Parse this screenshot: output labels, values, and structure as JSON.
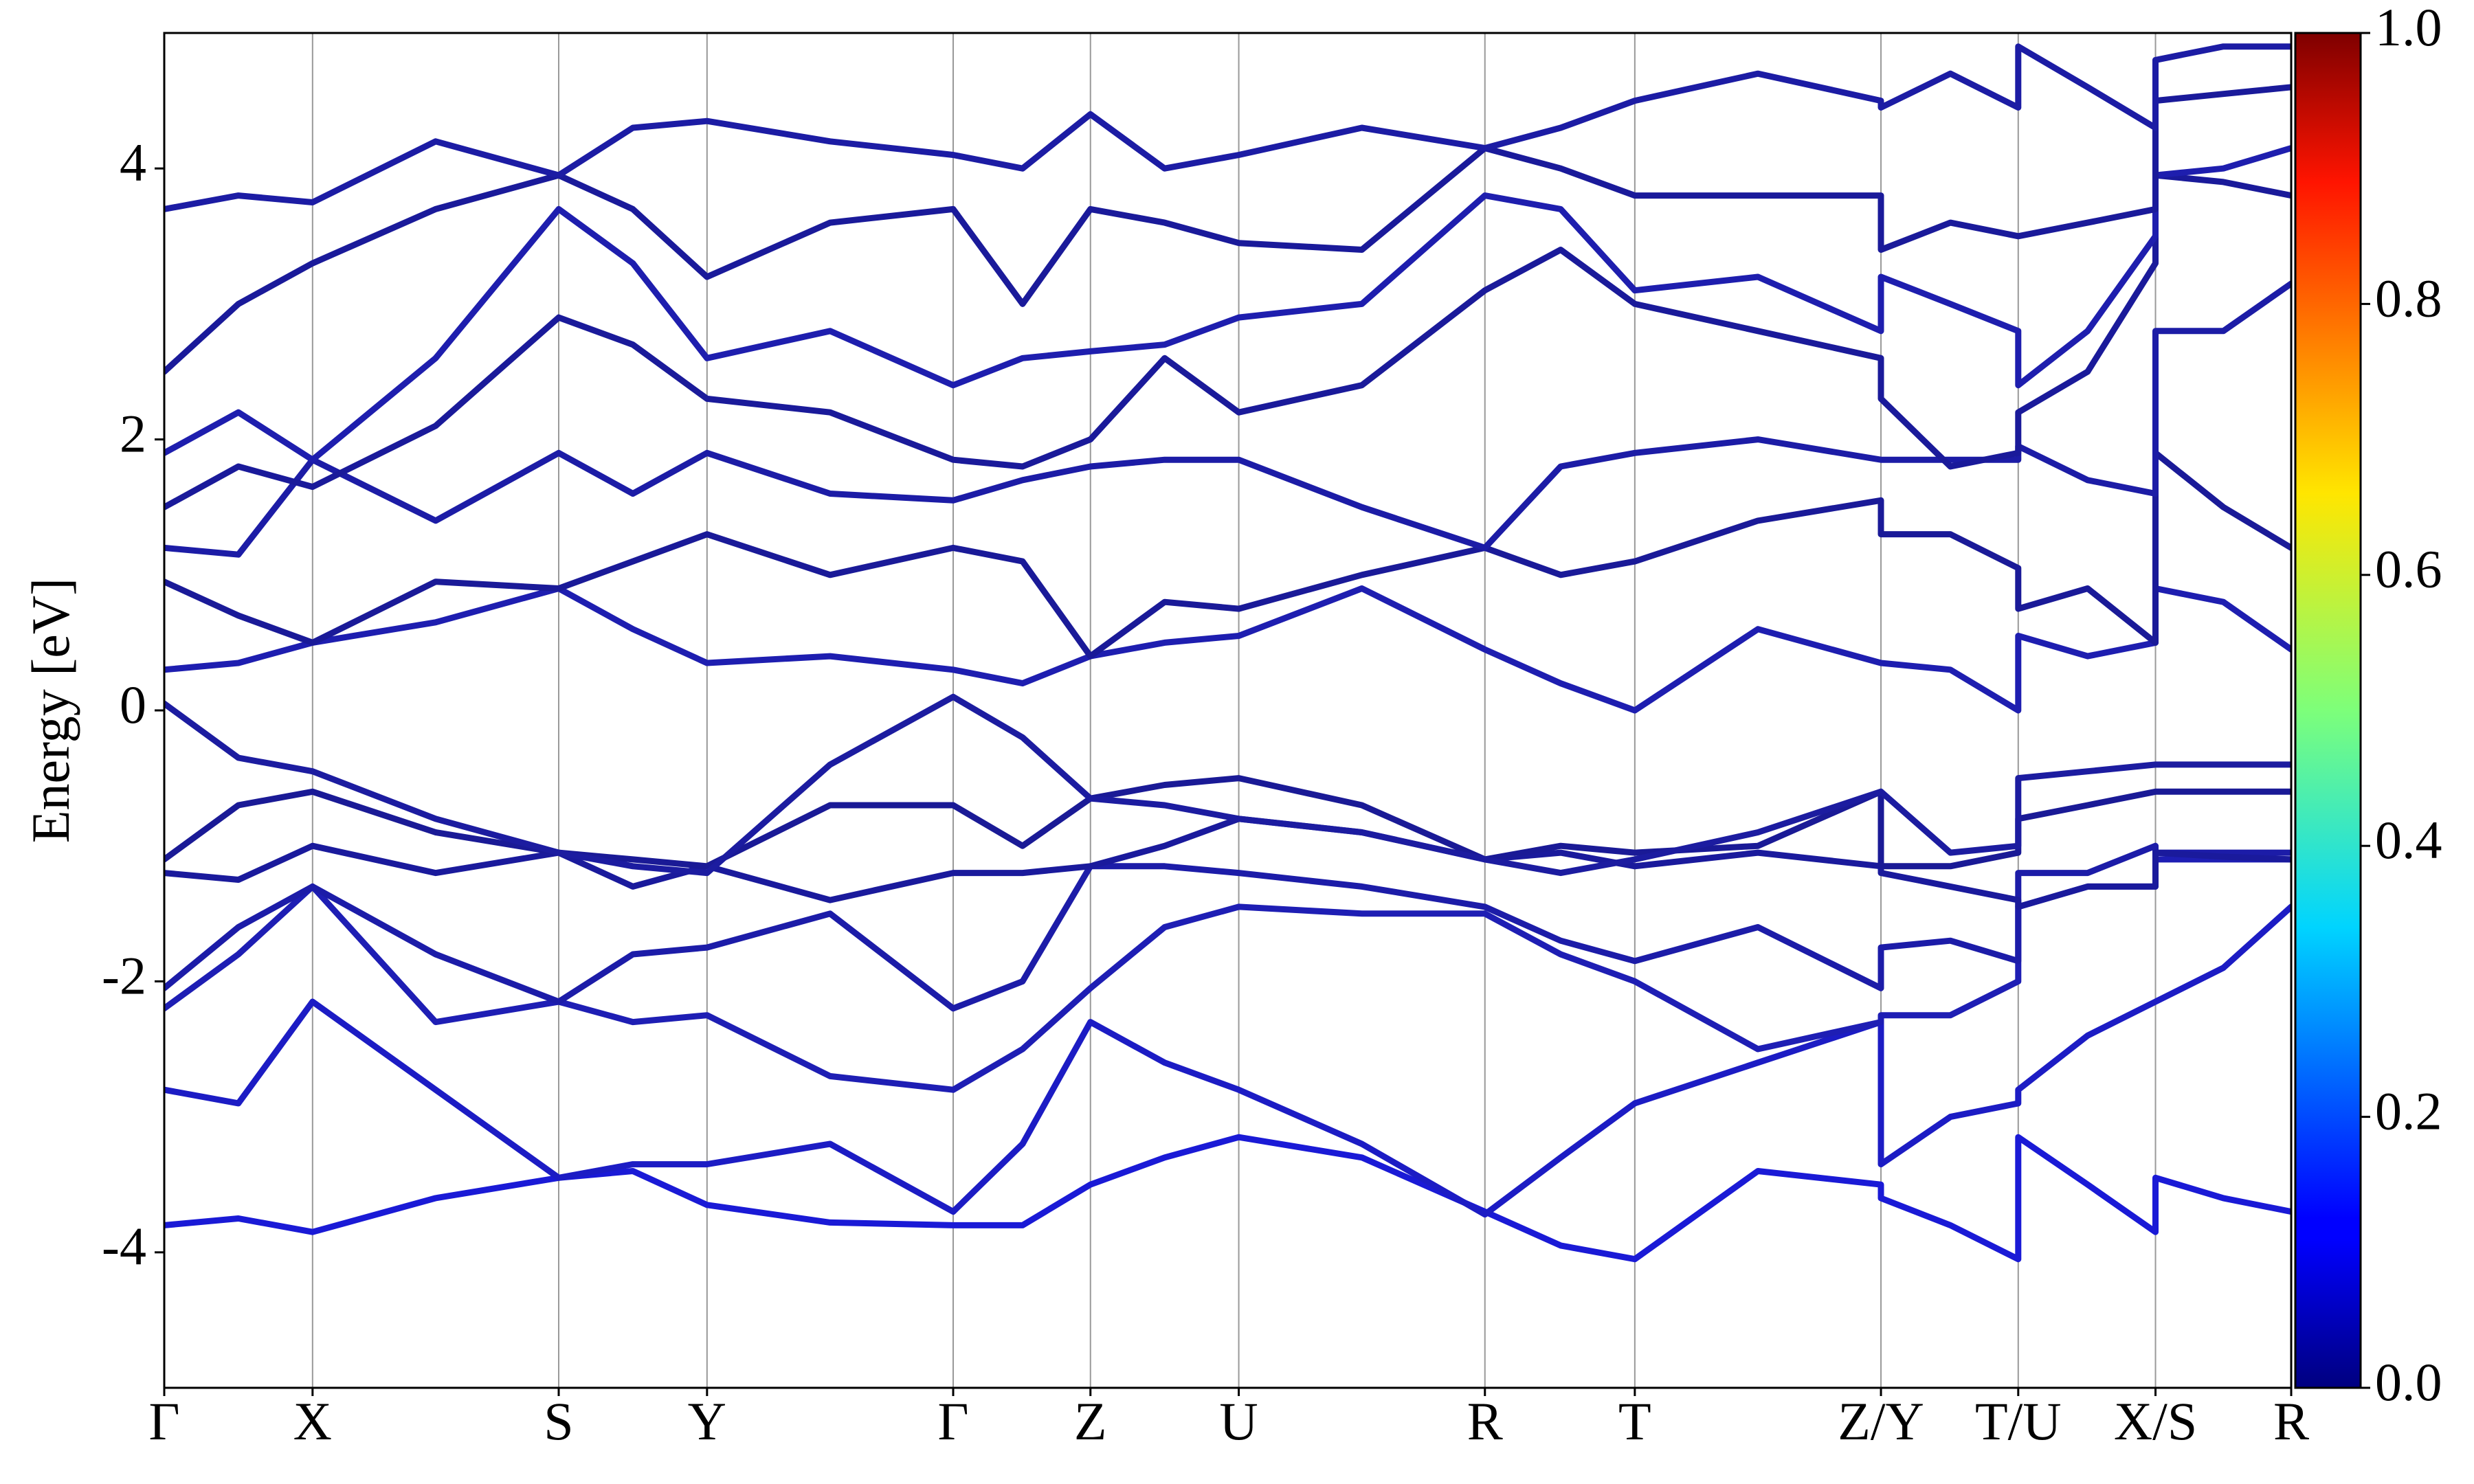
{
  "chart_data": {
    "type": "line",
    "ylabel": "Energy [eV]",
    "x": [
      0,
      0.47,
      0.94,
      1.72,
      2.5,
      2.97,
      3.44,
      4.22,
      5.0,
      5.44,
      5.87,
      6.34,
      6.81,
      7.59,
      8.37,
      8.85,
      9.32,
      10.1,
      10.88,
      10.88,
      11.32,
      11.75,
      11.75,
      12.19,
      12.62,
      12.62,
      13.05,
      13.48
    ],
    "xlim": [
      0,
      13.48
    ],
    "xticks": [
      {
        "value": 0,
        "label": "Γ"
      },
      {
        "value": 0.94,
        "label": "X"
      },
      {
        "value": 2.5,
        "label": "S"
      },
      {
        "value": 3.44,
        "label": "Y"
      },
      {
        "value": 5.0,
        "label": "Γ"
      },
      {
        "value": 5.87,
        "label": "Z"
      },
      {
        "value": 6.81,
        "label": "U"
      },
      {
        "value": 8.37,
        "label": "R"
      },
      {
        "value": 9.32,
        "label": "T"
      },
      {
        "value": 10.88,
        "label": "Z/Y"
      },
      {
        "value": 11.75,
        "label": "T/U"
      },
      {
        "value": 12.62,
        "label": "X/S"
      },
      {
        "value": 13.48,
        "label": "R"
      }
    ],
    "ylim": [
      -5,
      5
    ],
    "yticks": [
      -4,
      -2,
      0,
      2,
      4
    ],
    "grid": true,
    "colorbar": {
      "lim": [
        0,
        1
      ],
      "ticks": [
        {
          "value": 0,
          "label": "0.0"
        },
        {
          "value": 0.2,
          "label": "0.2"
        },
        {
          "value": 0.4,
          "label": "0.4"
        },
        {
          "value": 0.6,
          "label": "0.6"
        },
        {
          "value": 0.8,
          "label": "0.8"
        },
        {
          "value": 1,
          "label": "1.0"
        }
      ]
    },
    "series": [
      {
        "color": "#1a1ad6",
        "values": [
          -3.8,
          -3.75,
          -3.85,
          -3.6,
          -3.45,
          -3.4,
          -3.65,
          -3.78,
          -3.8,
          -3.8,
          -3.5,
          -3.3,
          -3.15,
          -3.3,
          -3.7,
          -3.95,
          -4.05,
          -3.4,
          -3.5,
          -3.6,
          -3.8,
          -4.05,
          -3.15,
          -3.5,
          -3.85,
          -3.45,
          -3.6,
          -3.7
        ]
      },
      {
        "color": "#1c1cc4",
        "values": [
          -2.8,
          -2.9,
          -2.15,
          -2.8,
          -3.45,
          -3.35,
          -3.35,
          -3.2,
          -3.7,
          -3.2,
          -2.3,
          -2.6,
          -2.8,
          -3.2,
          -3.72,
          -3.3,
          -2.9,
          -2.6,
          -2.3,
          -3.35,
          -3.0,
          -2.9,
          -2.8,
          -2.4,
          -2.15,
          -2.15,
          -1.9,
          -1.45
        ]
      },
      {
        "color": "#1e1eb4",
        "values": [
          -2.2,
          -1.8,
          -1.3,
          -2.3,
          -2.15,
          -2.3,
          -2.25,
          -2.7,
          -2.8,
          -2.5,
          -2.05,
          -1.6,
          -1.45,
          -1.5,
          -1.5,
          -1.8,
          -2.0,
          -2.5,
          -2.3,
          -2.25,
          -2.25,
          -2.0,
          -1.45,
          -1.3,
          -1.3,
          -1.1,
          -1.1,
          -1.1
        ]
      },
      {
        "color": "#1c1ca8",
        "values": [
          -2.05,
          -1.6,
          -1.3,
          -1.8,
          -2.15,
          -1.8,
          -1.75,
          -1.5,
          -2.2,
          -2.0,
          -1.15,
          -1.15,
          -1.2,
          -1.3,
          -1.45,
          -1.7,
          -1.85,
          -1.6,
          -2.05,
          -1.75,
          -1.7,
          -1.85,
          -1.2,
          -1.2,
          -1.0,
          -1.05,
          -1.05,
          -1.05
        ]
      },
      {
        "color": "#1a1a9c",
        "values": [
          -1.2,
          -1.25,
          -1.0,
          -1.2,
          -1.05,
          -1.3,
          -1.15,
          -1.4,
          -1.2,
          -1.2,
          -1.15,
          -1.0,
          -0.8,
          -0.9,
          -1.1,
          -1.05,
          -1.15,
          -1.05,
          -1.15,
          -1.2,
          -1.3,
          -1.4,
          -1.45,
          -1.3,
          -1.3,
          -1.05,
          -1.08,
          -1.1
        ]
      },
      {
        "color": "#1a1a96",
        "values": [
          -1.1,
          -0.7,
          -0.6,
          -0.9,
          -1.05,
          -1.1,
          -1.15,
          -0.7,
          -0.7,
          -1.0,
          -0.65,
          -0.55,
          -0.5,
          -0.7,
          -1.1,
          -1.0,
          -1.05,
          -1.0,
          -0.6,
          -1.15,
          -1.15,
          -1.05,
          -0.8,
          -0.7,
          -0.6,
          -0.6,
          -0.6,
          -0.6
        ]
      },
      {
        "color": "#1c1ca0",
        "values": [
          0.05,
          -0.35,
          -0.45,
          -0.8,
          -1.05,
          -1.15,
          -1.2,
          -0.4,
          0.1,
          -0.2,
          -0.65,
          -0.7,
          -0.8,
          -0.9,
          -1.1,
          -1.2,
          -1.1,
          -0.9,
          -0.6,
          -0.6,
          -1.05,
          -1.0,
          -0.5,
          -0.45,
          -0.4,
          -0.4,
          -0.4,
          -0.4
        ]
      },
      {
        "color": "#1e1eb0",
        "values": [
          0.3,
          0.35,
          0.5,
          0.65,
          0.9,
          0.6,
          0.35,
          0.4,
          0.3,
          0.2,
          0.4,
          0.5,
          0.55,
          0.9,
          0.45,
          0.2,
          0.0,
          0.6,
          0.35,
          0.35,
          0.3,
          0.0,
          0.55,
          0.4,
          0.5,
          0.9,
          0.8,
          0.45
        ]
      },
      {
        "color": "#1a1a98",
        "values": [
          0.95,
          0.7,
          0.5,
          0.95,
          0.9,
          1.1,
          1.3,
          1.0,
          1.2,
          1.1,
          0.4,
          0.8,
          0.75,
          1.0,
          1.2,
          1.0,
          1.1,
          1.4,
          1.55,
          1.3,
          1.3,
          1.05,
          0.75,
          0.9,
          0.5,
          1.9,
          1.5,
          1.2
        ]
      },
      {
        "color": "#1c1ca6",
        "values": [
          1.2,
          1.15,
          1.85,
          1.4,
          1.9,
          1.6,
          1.9,
          1.6,
          1.55,
          1.7,
          1.8,
          1.85,
          1.85,
          1.5,
          1.2,
          1.8,
          1.9,
          2.0,
          1.85,
          1.85,
          1.85,
          1.85,
          1.95,
          1.7,
          1.6,
          2.8,
          2.8,
          3.15
        ]
      },
      {
        "color": "#1a1a9a",
        "values": [
          1.5,
          1.8,
          1.65,
          2.1,
          2.9,
          2.7,
          2.3,
          2.2,
          1.85,
          1.8,
          2.0,
          2.6,
          2.2,
          2.4,
          3.1,
          3.4,
          3.0,
          2.8,
          2.6,
          2.3,
          1.8,
          1.9,
          2.2,
          2.5,
          3.3,
          3.95,
          3.9,
          3.8
        ]
      },
      {
        "color": "#1e1eae",
        "values": [
          1.9,
          2.2,
          1.85,
          2.6,
          3.7,
          3.3,
          2.6,
          2.8,
          2.4,
          2.6,
          2.65,
          2.7,
          2.9,
          3.0,
          3.8,
          3.7,
          3.1,
          3.2,
          2.8,
          3.2,
          3.0,
          2.8,
          2.4,
          2.8,
          3.5,
          3.95,
          4.0,
          4.15
        ]
      },
      {
        "color": "#1a1a9a",
        "values": [
          2.5,
          3.0,
          3.3,
          3.7,
          3.95,
          3.7,
          3.2,
          3.6,
          3.7,
          3.0,
          3.7,
          3.6,
          3.45,
          3.4,
          4.15,
          4.0,
          3.8,
          3.8,
          3.8,
          3.4,
          3.6,
          3.5,
          3.5,
          3.6,
          3.7,
          4.5,
          4.55,
          4.6
        ]
      },
      {
        "color": "#1c1ca4",
        "values": [
          3.7,
          3.8,
          3.75,
          4.2,
          3.95,
          4.3,
          4.35,
          4.2,
          4.1,
          4.0,
          4.4,
          4.0,
          4.1,
          4.3,
          4.15,
          4.3,
          4.5,
          4.7,
          4.5,
          4.45,
          4.7,
          4.45,
          4.9,
          4.6,
          4.3,
          4.8,
          4.9,
          4.9
        ]
      }
    ]
  }
}
